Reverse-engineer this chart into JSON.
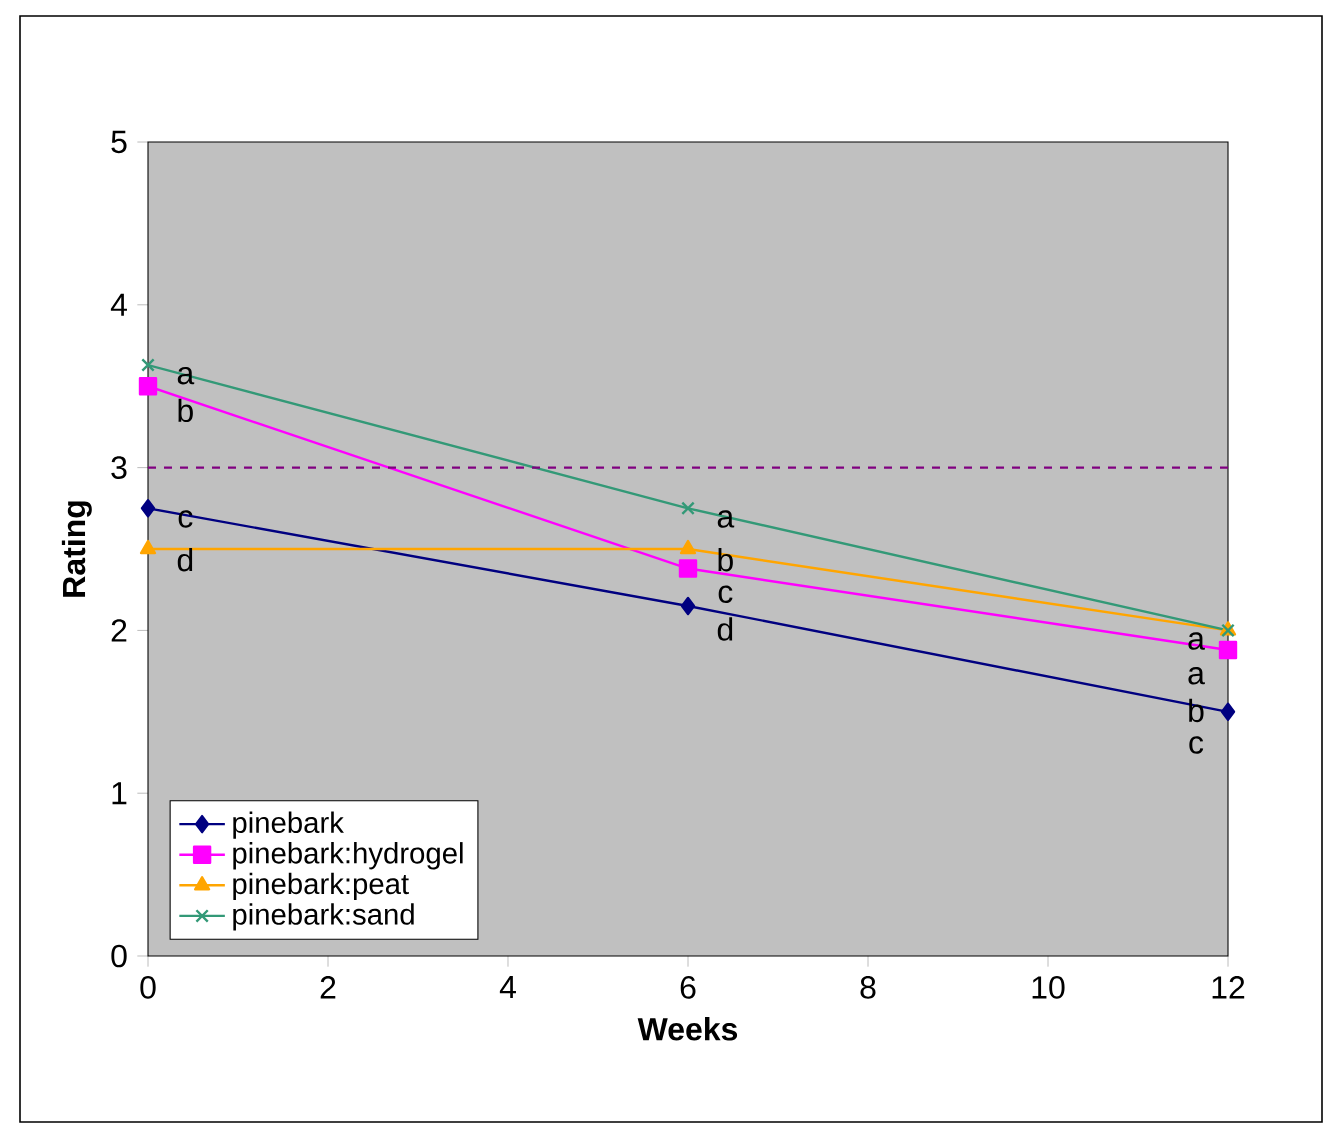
{
  "chart_data": {
    "type": "line",
    "xlabel": "Weeks",
    "ylabel": "Rating",
    "x": [
      0,
      6,
      12
    ],
    "series": [
      {
        "name": "pinebark",
        "color": "#000080",
        "marker": "diamond",
        "values": [
          2.75,
          2.15,
          1.5
        ]
      },
      {
        "name": "pinebark:hydrogel",
        "color": "#ff00ff",
        "marker": "square",
        "values": [
          3.5,
          2.38,
          1.88
        ]
      },
      {
        "name": "pinebark:peat",
        "color": "#ffa500",
        "marker": "triangle",
        "values": [
          2.5,
          2.5,
          2.0
        ]
      },
      {
        "name": "pinebark:sand",
        "color": "#339977",
        "marker": "cross",
        "values": [
          3.63,
          2.75,
          2.0
        ]
      }
    ],
    "xlim": [
      0,
      12
    ],
    "xticks": [
      0,
      2,
      4,
      6,
      8,
      10,
      12
    ],
    "ylim": [
      0,
      5
    ],
    "yticks": [
      0,
      1,
      2,
      3,
      4,
      5
    ],
    "ref_lines": [
      {
        "axis": "y",
        "value": 3,
        "color": "#800080",
        "line_style": "dashed"
      }
    ],
    "annotations": [
      {
        "text": "a",
        "x": 0,
        "y": 3.63
      },
      {
        "text": "b",
        "x": 0,
        "y": 3.5
      },
      {
        "text": "c",
        "x": 0,
        "y": 2.75
      },
      {
        "text": "d",
        "x": 0,
        "y": 2.5
      },
      {
        "text": "a",
        "x": 6,
        "y": 2.75
      },
      {
        "text": "b",
        "x": 6,
        "y": 2.5
      },
      {
        "text": "c",
        "x": 6,
        "y": 2.38
      },
      {
        "text": "d",
        "x": 6,
        "y": 2.15
      },
      {
        "text": "a",
        "x": 12,
        "y": 2.0
      },
      {
        "text": "a",
        "x": 12,
        "y": 2.0
      },
      {
        "text": "b",
        "x": 12,
        "y": 1.88
      },
      {
        "text": "c",
        "x": 12,
        "y": 1.5
      }
    ],
    "legend": "bottom left",
    "grid": false,
    "line_style": "solid"
  }
}
